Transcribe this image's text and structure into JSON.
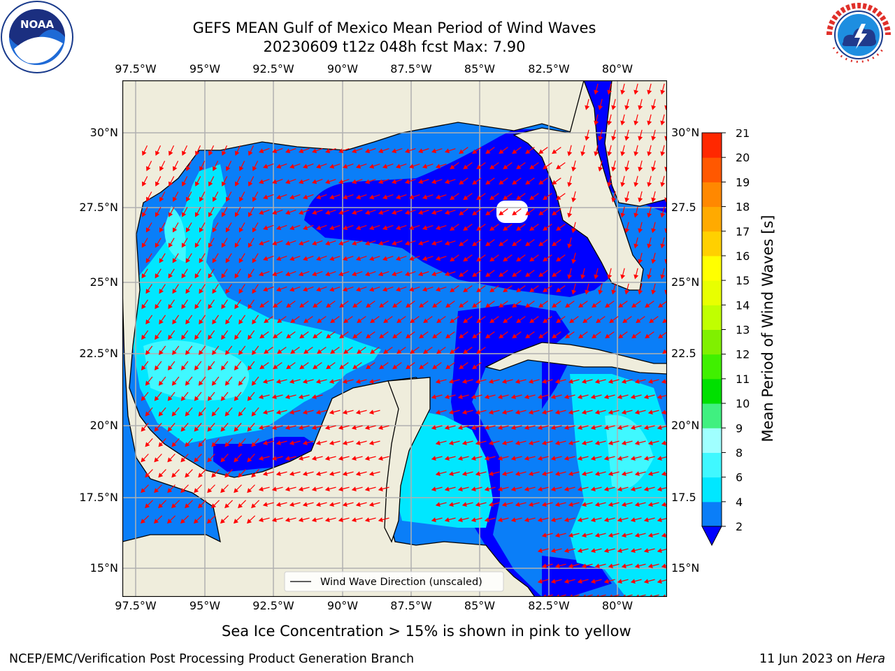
{
  "figure": {
    "title_line1": "GEFS MEAN Gulf of Mexico Mean Period of Wind Waves",
    "title_line2": "20230609 t12z 048h fcst   Max: 7.90",
    "caption": "Sea Ice Concentration > 15% is shown in pink to yellow",
    "footer_left": "NCEP/EMC/Verification Post Processing Product Generation Branch",
    "footer_right_prefix": "11 Jun 2023 on ",
    "footer_right_host": "Hera"
  },
  "map": {
    "region": "Gulf of Mexico",
    "lon_ticks": [
      "97.5°W",
      "95°W",
      "92.5°W",
      "90°W",
      "87.5°W",
      "85°W",
      "82.5°W",
      "80°W"
    ],
    "lat_ticks_left": [
      "30°N",
      "27.5°N",
      "25°N",
      "22.5°N",
      "20°N",
      "17.5°N",
      "15°N"
    ],
    "lat_ticks_right": [
      "30°N",
      "27.5",
      "25°N",
      "22.5",
      "20°N",
      "17.5",
      "15°N"
    ],
    "legend_label": "Wind Wave Direction (unscaled)",
    "land_color": "#efeddc",
    "arrow_color": "#ff0000"
  },
  "colorbar": {
    "label": "Mean Period of Wind Waves [s]",
    "ticks": [
      "2",
      "4",
      "6",
      "8",
      "9",
      "10",
      "11",
      "12",
      "13",
      "14",
      "15",
      "16",
      "17",
      "18",
      "19",
      "20",
      "21"
    ],
    "colors": [
      "#0a7ef8",
      "#00e7ff",
      "#40f8ff",
      "#a0ffff",
      "#40f080",
      "#00e000",
      "#40f000",
      "#80f000",
      "#c0ff00",
      "#e8ff00",
      "#ffff00",
      "#ffd000",
      "#ffaa00",
      "#ff8800",
      "#ff5800",
      "#ff2800",
      "#ff0000"
    ],
    "under_color": "#0000ff"
  },
  "logos": {
    "noaa_text": "NOAA",
    "nws_text": "NATIONAL WEATHER SERVICE"
  }
}
